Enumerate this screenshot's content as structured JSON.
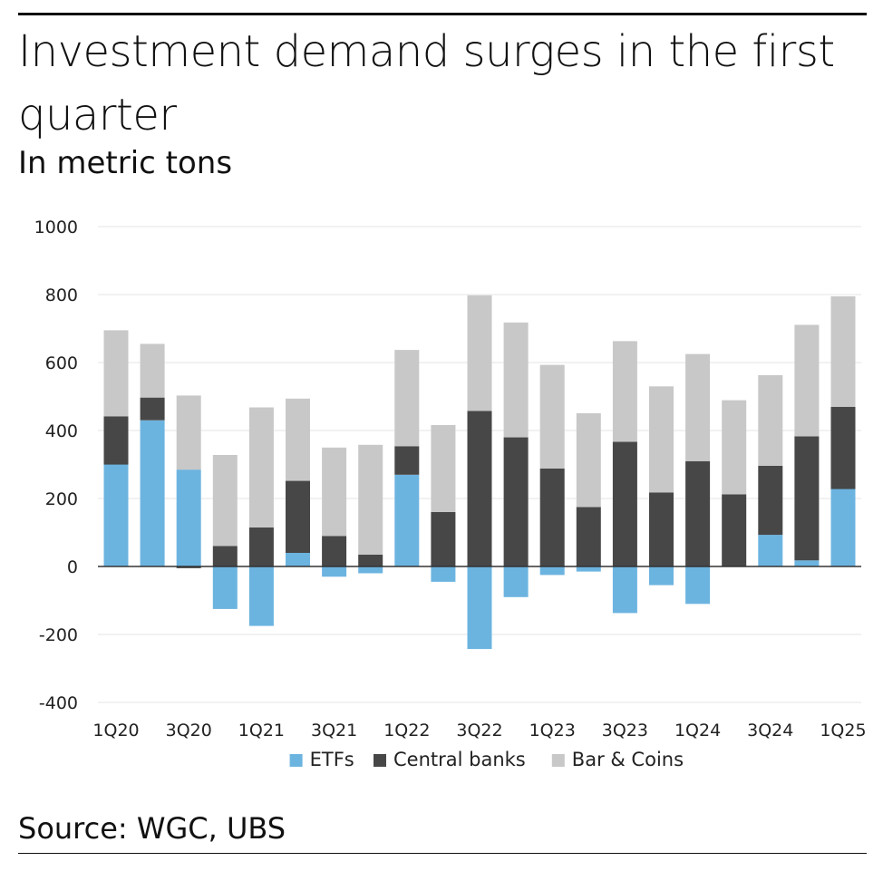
{
  "title": "Investment demand surges in the first quarter",
  "subtitle": "In metric tons",
  "source": "Source: WGC, UBS",
  "colors": {
    "ETFs": "#6cb4e0",
    "Central banks": "#474747",
    "Bar & Coins": "#c8c8c8",
    "grid": "#e6e6e6",
    "zero": "#333333"
  },
  "chart_data": {
    "type": "bar",
    "stacked": true,
    "categories": [
      "1Q20",
      "2Q20",
      "3Q20",
      "4Q20",
      "1Q21",
      "2Q21",
      "3Q21",
      "4Q21",
      "1Q22",
      "2Q22",
      "3Q22",
      "4Q22",
      "1Q23",
      "2Q23",
      "3Q23",
      "4Q23",
      "1Q24",
      "2Q24",
      "3Q24",
      "4Q24",
      "1Q25"
    ],
    "tick_labels": [
      "1Q20",
      "3Q20",
      "1Q21",
      "3Q21",
      "1Q22",
      "3Q22",
      "1Q23",
      "3Q23",
      "1Q24",
      "3Q24",
      "1Q25"
    ],
    "series": [
      {
        "name": "ETFs",
        "values": [
          300,
          430,
          285,
          -125,
          -175,
          40,
          -30,
          -20,
          270,
          -45,
          -243,
          -90,
          -25,
          -15,
          -137,
          -55,
          -110,
          0,
          93,
          18,
          228
        ]
      },
      {
        "name": "Central banks",
        "values": [
          142,
          67,
          -5,
          60,
          115,
          212,
          90,
          35,
          84,
          160,
          458,
          380,
          288,
          175,
          367,
          218,
          310,
          212,
          203,
          365,
          242
        ]
      },
      {
        "name": "Bar & Coins",
        "values": [
          253,
          158,
          218,
          268,
          353,
          242,
          260,
          323,
          283,
          256,
          340,
          338,
          305,
          276,
          296,
          312,
          315,
          277,
          267,
          328,
          325
        ]
      }
    ],
    "yticks": [
      -400,
      -200,
      0,
      200,
      400,
      600,
      800,
      1000
    ],
    "ylim": [
      -400,
      1000
    ],
    "legend": [
      "ETFs",
      "Central banks",
      "Bar & Coins"
    ],
    "legend_position": "bottom",
    "grid": true
  }
}
